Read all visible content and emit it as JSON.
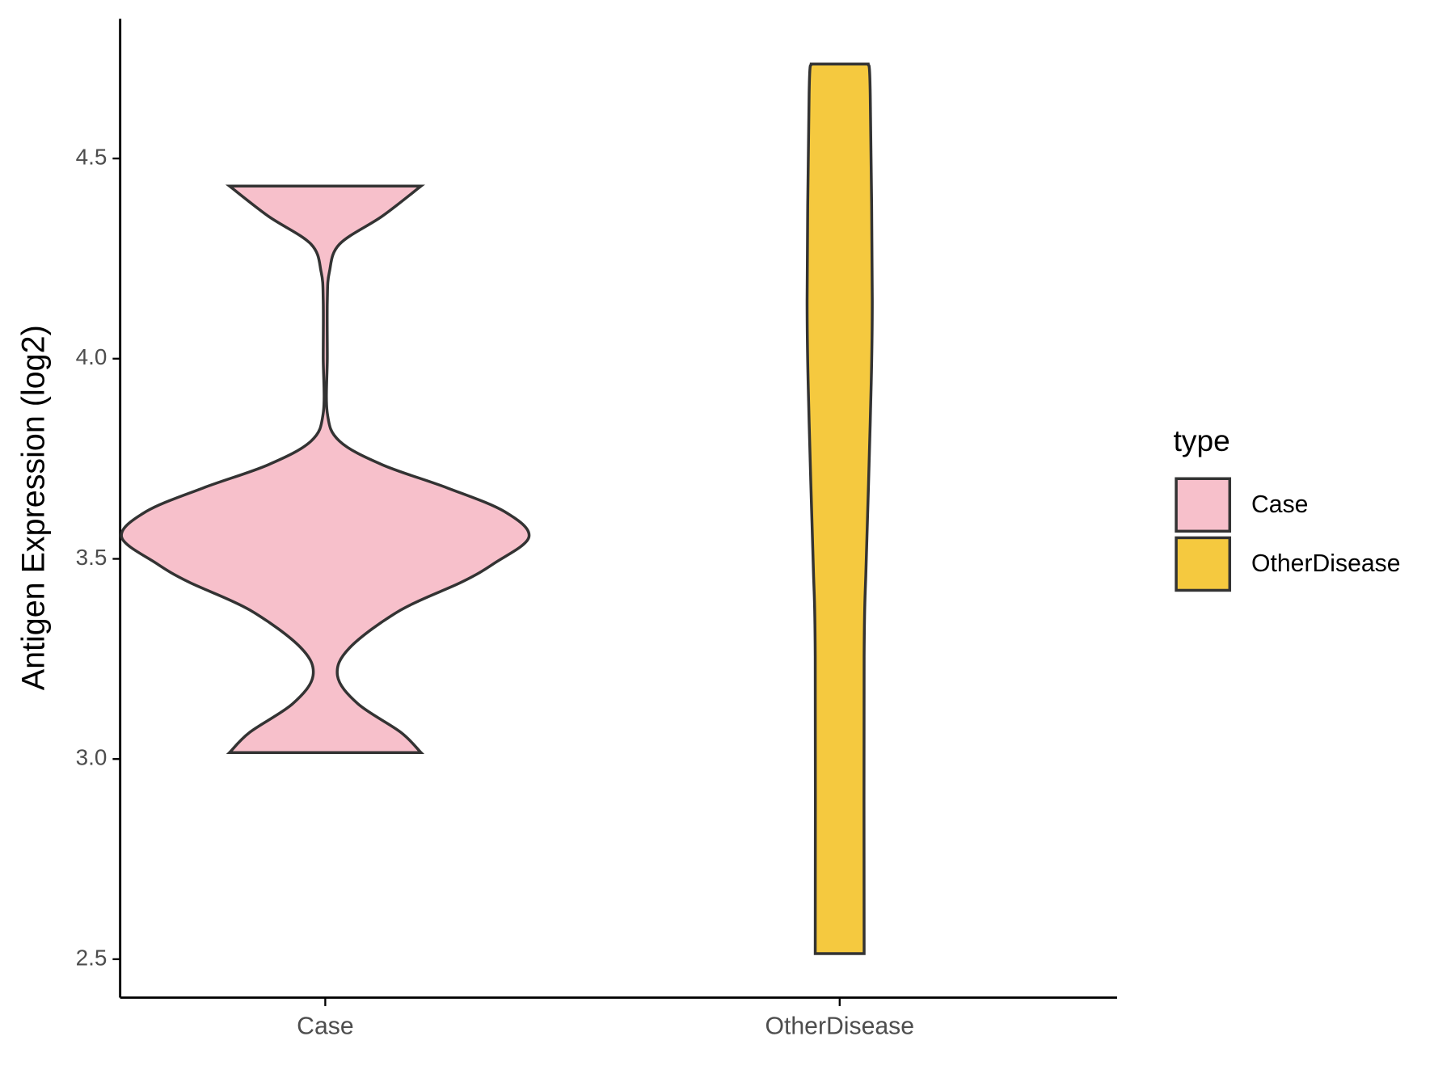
{
  "chart_data": {
    "type": "violin",
    "y_label": "Antigen Expression (log2)",
    "categories": [
      "Case",
      "OtherDisease"
    ],
    "legend_title": "type",
    "legend_position": "right",
    "series": [
      {
        "name": "Case",
        "color": "#F7C0CB",
        "density_y": [
          4.431,
          4.356,
          4.286,
          4.216,
          4.145,
          4.005,
          3.864,
          3.794,
          3.735,
          3.677,
          3.618,
          3.555,
          3.489,
          3.442,
          3.372,
          3.278,
          3.208,
          3.138,
          3.067,
          3.016
        ],
        "density": [
          0.47,
          0.28,
          0.07,
          0.02,
          0.01,
          0.01,
          0.01,
          0.07,
          0.28,
          0.6,
          0.88,
          1,
          0.83,
          0.67,
          0.37,
          0.12,
          0.06,
          0.16,
          0.37,
          0.47
        ]
      },
      {
        "name": "OtherDisease",
        "color": "#F5C93F",
        "density_y": [
          4.736,
          4.661,
          4.145,
          3.841,
          3.489,
          3.255,
          2.514
        ],
        "density": [
          0.14,
          0.15,
          0.16,
          0.15,
          0.13,
          0.12,
          0.12
        ]
      }
    ],
    "ylim": [
      2.404,
      4.849
    ],
    "yticks": [
      2.5,
      {
        "value": 3.0,
        "label": "3.0"
      },
      3.5,
      {
        "value": 4.0,
        "label": "4.0"
      },
      4.5
    ],
    "grid": false
  }
}
